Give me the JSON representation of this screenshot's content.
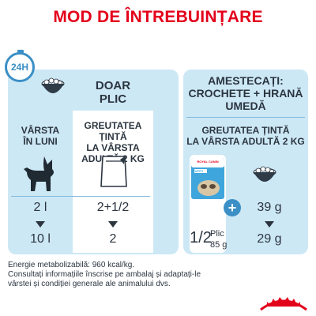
{
  "title": "MOD DE ÎNTREBUINȚARE",
  "badge": "24H",
  "left": {
    "header": [
      "DOAR",
      "PLIC"
    ],
    "age_label": [
      "VÂRSTA",
      "ÎN LUNI"
    ],
    "weight_label": [
      "GREUTATEA ȚINTĂ",
      "LA VÂRSTA",
      "ADULTĂ 2 KG"
    ],
    "rows": [
      {
        "age": "2 l",
        "value": "2+1/2"
      },
      {
        "age": "10 l",
        "value": "2"
      }
    ]
  },
  "right": {
    "header": [
      "AMESTECAȚI:",
      "CROCHETE + HRANĂ",
      "UMEDĂ"
    ],
    "weight_label": [
      "GREUTATEA ȚINTĂ",
      "LA VÂRSTA ADULTĂ 2 KG"
    ],
    "pack_brand": "ROYAL CANIN",
    "pack_label": "PUPPY",
    "plus": "+",
    "plic_fraction": "1/2",
    "plic_word": "Plic",
    "plic_weight": "85 g",
    "kibble": [
      "39 g",
      "29 g"
    ]
  },
  "footer": [
    "Energie metabolizabilă: 960 kcal/kg.",
    "Consultați informațiile înscrise pe ambalaj și adaptați-le",
    "vârstei și condiției generale ale animalului dvs."
  ],
  "colors": {
    "brand_red": "#e3001b",
    "panel_blue": "#cde8f5",
    "accent_blue": "#3b8fc6"
  }
}
